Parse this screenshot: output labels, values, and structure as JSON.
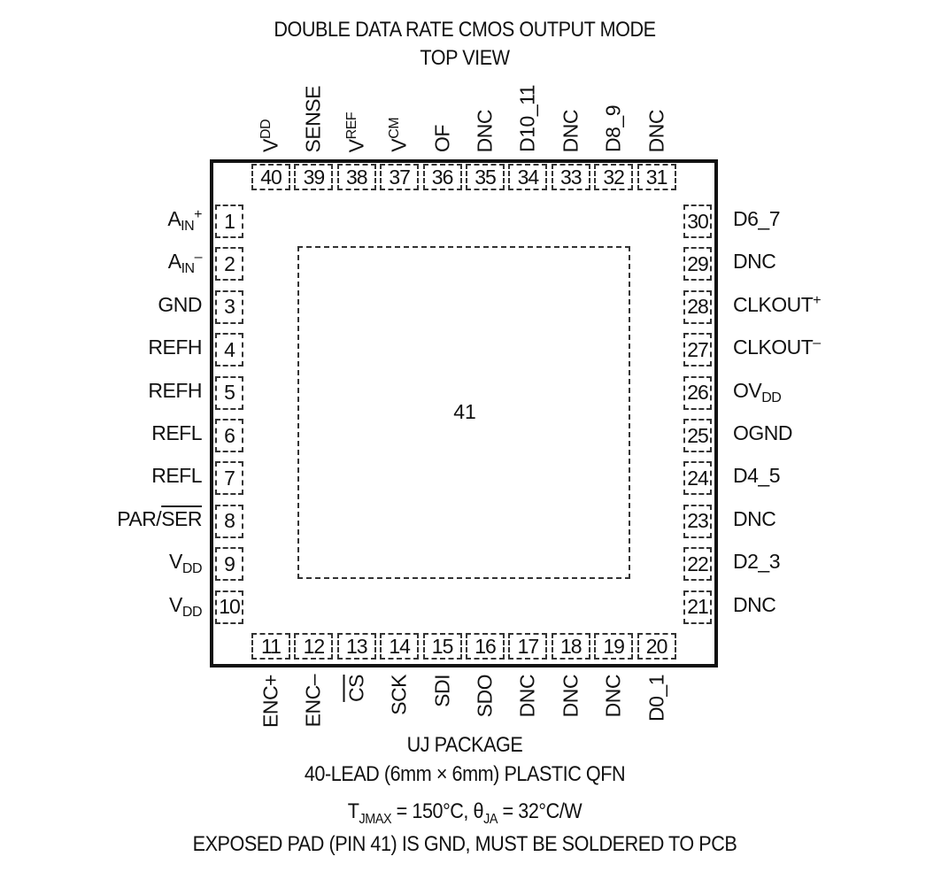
{
  "title": "DOUBLE DATA RATE CMOS OUTPUT MODE",
  "subtitle": "TOP VIEW",
  "exposed_pad_number": "41",
  "pins": {
    "left": [
      {
        "num": "1",
        "parts": {
          "t": "A",
          "sub": "IN",
          "sup": "+"
        }
      },
      {
        "num": "2",
        "parts": {
          "t": "A",
          "sub": "IN",
          "sup": "–"
        }
      },
      {
        "num": "3",
        "parts": {
          "t": "GND"
        }
      },
      {
        "num": "4",
        "parts": {
          "t": "REFH"
        }
      },
      {
        "num": "5",
        "parts": {
          "t": "REFH"
        }
      },
      {
        "num": "6",
        "parts": {
          "t": "REFL"
        }
      },
      {
        "num": "7",
        "parts": {
          "t": "REFL"
        }
      },
      {
        "num": "8",
        "parts": {
          "t": "PAR/",
          "ov": "SER"
        }
      },
      {
        "num": "9",
        "parts": {
          "t": "V",
          "sub": "DD"
        }
      },
      {
        "num": "10",
        "parts": {
          "t": "V",
          "sub": "DD"
        }
      }
    ],
    "bottom": [
      {
        "num": "11",
        "parts": {
          "t": "ENC+"
        }
      },
      {
        "num": "12",
        "parts": {
          "t": "ENC–"
        }
      },
      {
        "num": "13",
        "parts": {
          "ov": "CS"
        }
      },
      {
        "num": "14",
        "parts": {
          "t": "SCK"
        }
      },
      {
        "num": "15",
        "parts": {
          "t": "SDI"
        }
      },
      {
        "num": "16",
        "parts": {
          "t": "SDO"
        }
      },
      {
        "num": "17",
        "parts": {
          "t": "DNC"
        }
      },
      {
        "num": "18",
        "parts": {
          "t": "DNC"
        }
      },
      {
        "num": "19",
        "parts": {
          "t": "DNC"
        }
      },
      {
        "num": "20",
        "parts": {
          "t": "D0_1"
        }
      }
    ],
    "right": [
      {
        "num": "30",
        "parts": {
          "t": "D6_7"
        }
      },
      {
        "num": "29",
        "parts": {
          "t": "DNC"
        }
      },
      {
        "num": "28",
        "parts": {
          "t": "CLKOUT",
          "sup": "+"
        }
      },
      {
        "num": "27",
        "parts": {
          "t": "CLKOUT",
          "sup": "–"
        }
      },
      {
        "num": "26",
        "parts": {
          "t": "OV",
          "sub": "DD"
        }
      },
      {
        "num": "25",
        "parts": {
          "t": "OGND"
        }
      },
      {
        "num": "24",
        "parts": {
          "t": "D4_5"
        }
      },
      {
        "num": "23",
        "parts": {
          "t": "DNC"
        }
      },
      {
        "num": "22",
        "parts": {
          "t": "D2_3"
        }
      },
      {
        "num": "21",
        "parts": {
          "t": "DNC"
        }
      }
    ],
    "top": [
      {
        "num": "40",
        "parts": {
          "t": "V",
          "sub": "DD"
        }
      },
      {
        "num": "39",
        "parts": {
          "t": "SENSE"
        }
      },
      {
        "num": "38",
        "parts": {
          "t": "V",
          "sub": "REF"
        }
      },
      {
        "num": "37",
        "parts": {
          "t": "V",
          "sub": "CM"
        }
      },
      {
        "num": "36",
        "parts": {
          "t": "OF"
        }
      },
      {
        "num": "35",
        "parts": {
          "t": "DNC"
        }
      },
      {
        "num": "34",
        "parts": {
          "t": "D10_11"
        }
      },
      {
        "num": "33",
        "parts": {
          "t": "DNC"
        }
      },
      {
        "num": "32",
        "parts": {
          "t": "D8_9"
        }
      },
      {
        "num": "31",
        "parts": {
          "t": "DNC"
        }
      }
    ]
  },
  "footer": {
    "package": "UJ PACKAGE",
    "lead": "40-LEAD (6mm × 6mm) PLASTIC QFN",
    "thermal": {
      "t1": "T",
      "s1": "JMAX",
      "m": " = 150°C, θ",
      "s2": "JA",
      "e": " = 32°C/W"
    },
    "note": "EXPOSED PAD (PIN 41) IS GND, MUST BE SOLDERED TO PCB"
  }
}
